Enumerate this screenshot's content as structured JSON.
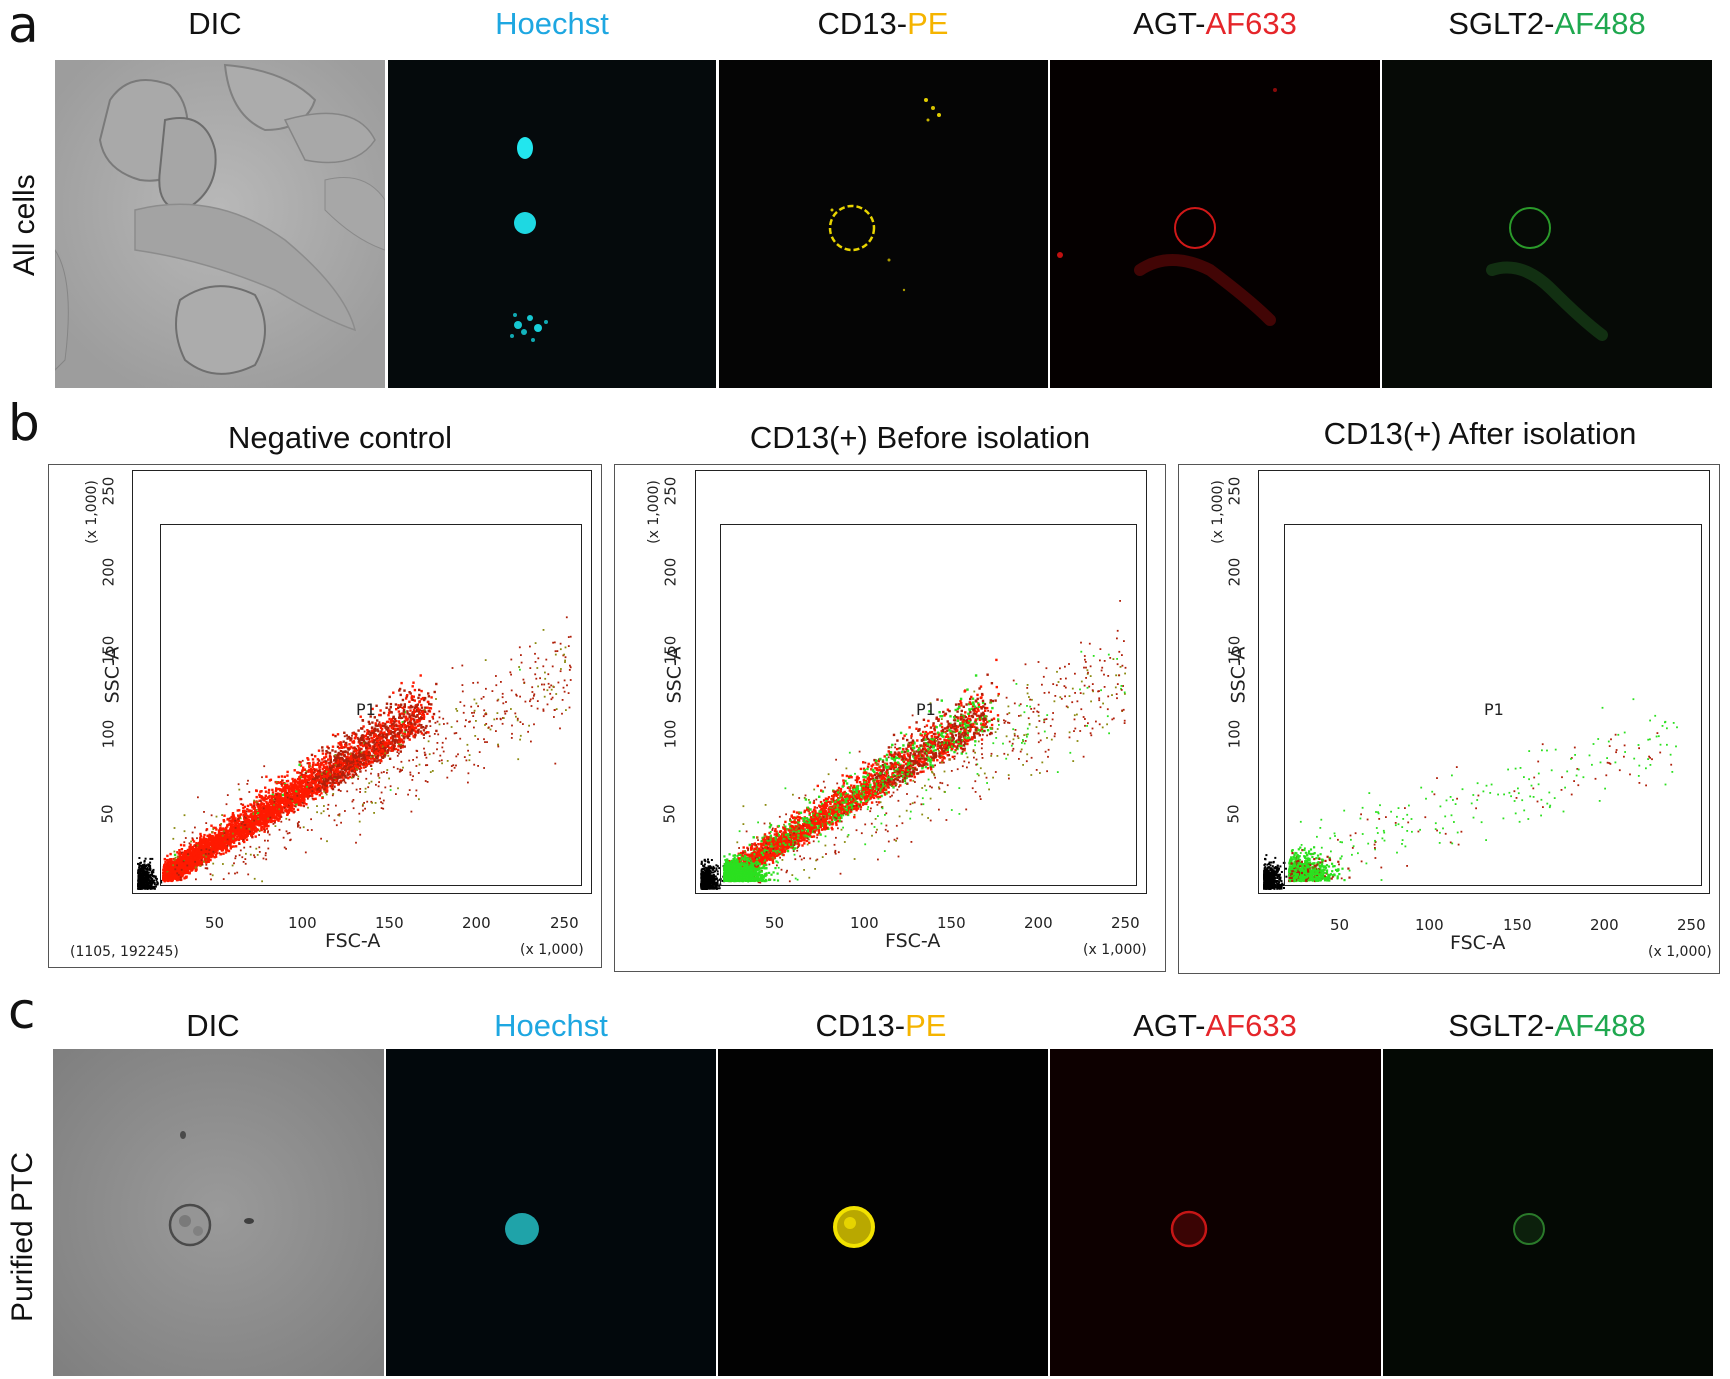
{
  "panels": {
    "a": {
      "letter": "a",
      "row_label": "All cells",
      "channels": [
        {
          "name": "DIC",
          "parts": [
            {
              "text": "DIC",
              "color": "#111111"
            }
          ],
          "icon": "dic-micrograph"
        },
        {
          "name": "Hoechst",
          "parts": [
            {
              "text": "Hoechst",
              "color": "#1EA7E1"
            }
          ],
          "icon": "hoechst-micrograph"
        },
        {
          "name": "CD13-PE",
          "parts": [
            {
              "text": "CD13-",
              "color": "#111111"
            },
            {
              "text": "PE",
              "color": "#F5B400"
            }
          ],
          "icon": "cd13-micrograph"
        },
        {
          "name": "AGT-AF633",
          "parts": [
            {
              "text": "AGT-",
              "color": "#111111"
            },
            {
              "text": "AF633",
              "color": "#E5252A"
            }
          ],
          "icon": "agt-micrograph"
        },
        {
          "name": "SGLT2-AF488",
          "parts": [
            {
              "text": "SGLT2-",
              "color": "#111111"
            },
            {
              "text": "AF488",
              "color": "#1FA84F"
            }
          ],
          "icon": "sglt2-micrograph"
        }
      ]
    },
    "b": {
      "letter": "b",
      "plots": [
        {
          "title": "Negative control",
          "x_label": "FSC-A",
          "y_label": "SSC-A",
          "gate": "P1",
          "scale_x": "(x 1,000)",
          "scale_y": "(x 1,000)",
          "event_count": "(1105, 192245)"
        },
        {
          "title": "CD13(+) Before isolation",
          "x_label": "FSC-A",
          "y_label": "SSC-A",
          "gate": "P1",
          "scale_x": "(x 1,000)",
          "scale_y": "(x 1,000)"
        },
        {
          "title": "CD13(+) After isolation",
          "x_label": "FSC-A",
          "y_label": "SSC-A",
          "gate": "P1",
          "scale_x": "(x 1,000)",
          "scale_y": "(x 1,000)"
        }
      ],
      "x_ticks": [
        "50",
        "100",
        "150",
        "200",
        "250"
      ],
      "y_ticks": [
        "50",
        "100",
        "150",
        "200",
        "250"
      ],
      "colors": {
        "red": "#FF1A00",
        "darkred": "#B0200A",
        "green": "#2BE01F",
        "olive": "#8A8A10",
        "black": "#000000"
      }
    },
    "c": {
      "letter": "c",
      "row_label": "Purified PTC",
      "channels": [
        {
          "name": "DIC",
          "parts": [
            {
              "text": "DIC",
              "color": "#111111"
            }
          ],
          "icon": "dic-micrograph"
        },
        {
          "name": "Hoechst",
          "parts": [
            {
              "text": "Hoechst",
              "color": "#1EA7E1"
            }
          ],
          "icon": "hoechst-micrograph"
        },
        {
          "name": "CD13-PE",
          "parts": [
            {
              "text": "CD13-",
              "color": "#111111"
            },
            {
              "text": "PE",
              "color": "#F5B400"
            }
          ],
          "icon": "cd13-micrograph"
        },
        {
          "name": "AGT-AF633",
          "parts": [
            {
              "text": "AGT-",
              "color": "#111111"
            },
            {
              "text": "AF633",
              "color": "#E5252A"
            }
          ],
          "icon": "agt-micrograph"
        },
        {
          "name": "SGLT2-AF488",
          "parts": [
            {
              "text": "SGLT2-",
              "color": "#111111"
            },
            {
              "text": "AF488",
              "color": "#1FA84F"
            }
          ],
          "icon": "sglt2-micrograph"
        }
      ]
    }
  }
}
